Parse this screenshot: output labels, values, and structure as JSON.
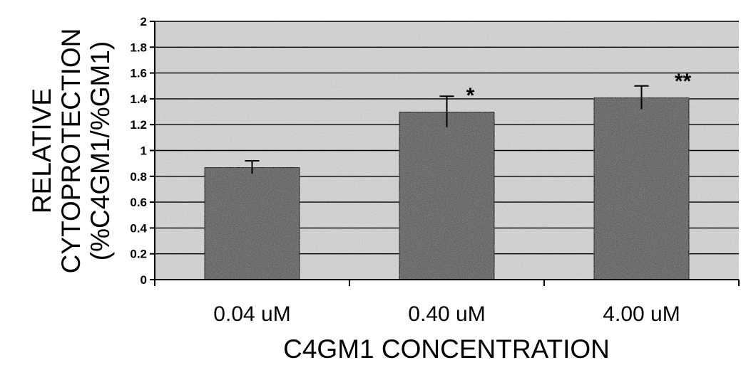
{
  "chart_data": {
    "type": "bar",
    "categories": [
      "0.04 uM",
      "0.40 uM",
      "4.00 uM"
    ],
    "values": [
      0.87,
      1.3,
      1.41
    ],
    "error_bars": [
      0.05,
      0.12,
      0.09
    ],
    "significance": [
      "",
      "*",
      "**"
    ],
    "xlabel": "C4GM1 CONCENTRATION",
    "ylabel_lines": [
      "RELATIVE",
      "CYTOPROTECTION",
      "(%C4GM1/%GM1)"
    ],
    "ylim": [
      0,
      2
    ],
    "yticks": [
      0,
      0.2,
      0.4,
      0.6,
      0.8,
      1,
      1.2,
      1.4,
      1.6,
      1.8,
      2
    ],
    "ytick_labels": [
      "0",
      "0.2",
      "0.4",
      "0.6",
      "0.8",
      "1",
      "1.2",
      "1.4",
      "1.6",
      "1.8",
      "2"
    ],
    "grid": true,
    "legend": "none",
    "colors": {
      "plot_background": "#c9c9c9",
      "bar_fill": "#5e5e5e",
      "gridline": "#000000"
    }
  }
}
